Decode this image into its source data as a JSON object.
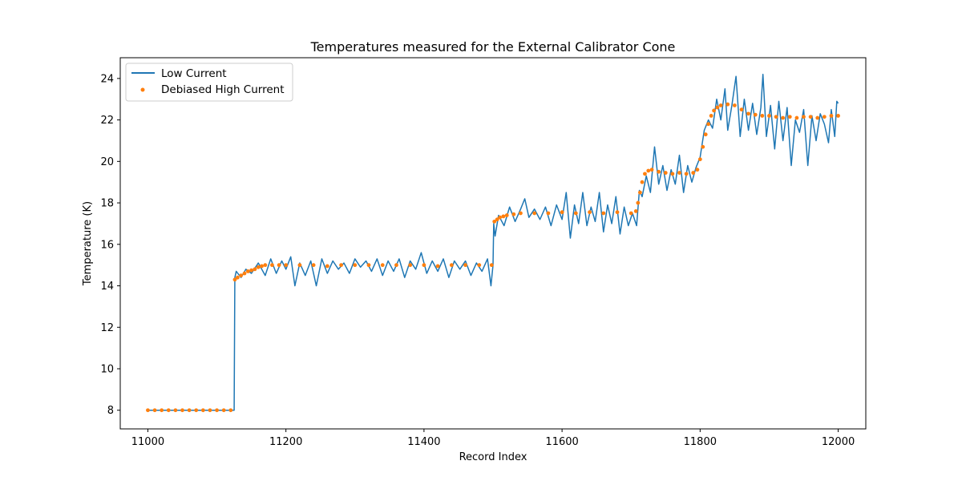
{
  "chart_data": {
    "type": "line+scatter",
    "title": "Temperatures measured for the External Calibrator Cone",
    "xlabel": "Record Index",
    "ylabel": "Temperature (K)",
    "xlim": [
      10960,
      12040
    ],
    "ylim": [
      7.1,
      25.0
    ],
    "xticks": [
      11000,
      11200,
      11400,
      11600,
      11800,
      12000
    ],
    "yticks": [
      8,
      10,
      12,
      14,
      16,
      18,
      20,
      22,
      24
    ],
    "legend_position": "upper-left",
    "series": [
      {
        "name": "Low Current",
        "kind": "line",
        "color": "#1f77b4",
        "points": [
          [
            11000,
            8.0
          ],
          [
            11125,
            8.0
          ],
          [
            11126,
            14.4
          ],
          [
            11128,
            14.7
          ],
          [
            11135,
            14.4
          ],
          [
            11142,
            14.8
          ],
          [
            11150,
            14.6
          ],
          [
            11160,
            15.1
          ],
          [
            11170,
            14.5
          ],
          [
            11178,
            15.3
          ],
          [
            11186,
            14.6
          ],
          [
            11194,
            15.2
          ],
          [
            11200,
            14.8
          ],
          [
            11207,
            15.4
          ],
          [
            11213,
            14.0
          ],
          [
            11220,
            15.1
          ],
          [
            11228,
            14.5
          ],
          [
            11236,
            15.2
          ],
          [
            11244,
            14.0
          ],
          [
            11252,
            15.3
          ],
          [
            11260,
            14.6
          ],
          [
            11268,
            15.2
          ],
          [
            11276,
            14.8
          ],
          [
            11284,
            15.1
          ],
          [
            11292,
            14.6
          ],
          [
            11300,
            15.3
          ],
          [
            11308,
            14.9
          ],
          [
            11316,
            15.2
          ],
          [
            11324,
            14.7
          ],
          [
            11332,
            15.3
          ],
          [
            11340,
            14.5
          ],
          [
            11348,
            15.2
          ],
          [
            11356,
            14.7
          ],
          [
            11364,
            15.3
          ],
          [
            11372,
            14.4
          ],
          [
            11380,
            15.2
          ],
          [
            11388,
            14.8
          ],
          [
            11396,
            15.6
          ],
          [
            11404,
            14.6
          ],
          [
            11412,
            15.2
          ],
          [
            11420,
            14.7
          ],
          [
            11428,
            15.3
          ],
          [
            11436,
            14.4
          ],
          [
            11444,
            15.2
          ],
          [
            11452,
            14.8
          ],
          [
            11460,
            15.2
          ],
          [
            11468,
            14.5
          ],
          [
            11476,
            15.1
          ],
          [
            11484,
            14.7
          ],
          [
            11492,
            15.3
          ],
          [
            11497,
            14.0
          ],
          [
            11500,
            15.0
          ],
          [
            11501,
            17.0
          ],
          [
            11503,
            16.4
          ],
          [
            11508,
            17.4
          ],
          [
            11516,
            16.9
          ],
          [
            11524,
            17.8
          ],
          [
            11532,
            17.1
          ],
          [
            11540,
            17.7
          ],
          [
            11546,
            18.2
          ],
          [
            11552,
            17.3
          ],
          [
            11560,
            17.7
          ],
          [
            11568,
            17.2
          ],
          [
            11576,
            17.8
          ],
          [
            11584,
            16.9
          ],
          [
            11592,
            17.9
          ],
          [
            11600,
            17.2
          ],
          [
            11606,
            18.5
          ],
          [
            11612,
            16.3
          ],
          [
            11618,
            17.9
          ],
          [
            11624,
            17.0
          ],
          [
            11630,
            18.5
          ],
          [
            11636,
            16.9
          ],
          [
            11642,
            17.8
          ],
          [
            11648,
            17.1
          ],
          [
            11654,
            18.5
          ],
          [
            11660,
            16.6
          ],
          [
            11666,
            17.9
          ],
          [
            11672,
            17.0
          ],
          [
            11678,
            18.3
          ],
          [
            11684,
            16.5
          ],
          [
            11690,
            17.8
          ],
          [
            11696,
            16.9
          ],
          [
            11702,
            17.5
          ],
          [
            11708,
            16.9
          ],
          [
            11712,
            18.6
          ],
          [
            11716,
            18.3
          ],
          [
            11722,
            19.3
          ],
          [
            11728,
            18.5
          ],
          [
            11734,
            20.7
          ],
          [
            11740,
            18.9
          ],
          [
            11746,
            19.8
          ],
          [
            11752,
            18.6
          ],
          [
            11758,
            19.6
          ],
          [
            11764,
            18.9
          ],
          [
            11770,
            20.3
          ],
          [
            11776,
            18.5
          ],
          [
            11782,
            19.8
          ],
          [
            11788,
            19.0
          ],
          [
            11794,
            19.7
          ],
          [
            11800,
            20.2
          ],
          [
            11806,
            21.5
          ],
          [
            11812,
            22.0
          ],
          [
            11818,
            21.6
          ],
          [
            11824,
            23.0
          ],
          [
            11830,
            22.0
          ],
          [
            11836,
            23.5
          ],
          [
            11840,
            21.5
          ],
          [
            11846,
            22.7
          ],
          [
            11852,
            24.1
          ],
          [
            11858,
            21.2
          ],
          [
            11864,
            23.0
          ],
          [
            11870,
            21.5
          ],
          [
            11876,
            22.8
          ],
          [
            11882,
            21.3
          ],
          [
            11888,
            22.6
          ],
          [
            11891,
            24.2
          ],
          [
            11896,
            21.2
          ],
          [
            11902,
            22.7
          ],
          [
            11908,
            20.6
          ],
          [
            11914,
            22.9
          ],
          [
            11920,
            21.0
          ],
          [
            11926,
            22.6
          ],
          [
            11932,
            19.8
          ],
          [
            11938,
            22.0
          ],
          [
            11944,
            21.4
          ],
          [
            11950,
            22.5
          ],
          [
            11956,
            19.8
          ],
          [
            11962,
            22.2
          ],
          [
            11968,
            21.0
          ],
          [
            11974,
            22.3
          ],
          [
            11980,
            21.8
          ],
          [
            11986,
            20.9
          ],
          [
            11990,
            22.5
          ],
          [
            11995,
            21.2
          ],
          [
            11998,
            22.9
          ],
          [
            12000,
            22.8
          ]
        ]
      },
      {
        "name": "Debiased High Current",
        "kind": "scatter",
        "color": "#ff7f0e",
        "points": [
          [
            11000,
            8.0
          ],
          [
            11010,
            8.0
          ],
          [
            11020,
            8.0
          ],
          [
            11030,
            8.0
          ],
          [
            11040,
            8.0
          ],
          [
            11050,
            8.0
          ],
          [
            11060,
            8.0
          ],
          [
            11070,
            8.0
          ],
          [
            11080,
            8.0
          ],
          [
            11090,
            8.0
          ],
          [
            11100,
            8.0
          ],
          [
            11110,
            8.0
          ],
          [
            11120,
            8.0
          ],
          [
            11126,
            14.3
          ],
          [
            11130,
            14.4
          ],
          [
            11135,
            14.5
          ],
          [
            11140,
            14.6
          ],
          [
            11145,
            14.7
          ],
          [
            11150,
            14.75
          ],
          [
            11155,
            14.8
          ],
          [
            11160,
            14.9
          ],
          [
            11165,
            14.95
          ],
          [
            11170,
            15.0
          ],
          [
            11180,
            15.0
          ],
          [
            11190,
            15.0
          ],
          [
            11200,
            15.0
          ],
          [
            11220,
            15.0
          ],
          [
            11240,
            15.0
          ],
          [
            11260,
            14.95
          ],
          [
            11280,
            15.0
          ],
          [
            11300,
            15.0
          ],
          [
            11320,
            15.0
          ],
          [
            11340,
            15.0
          ],
          [
            11360,
            15.0
          ],
          [
            11380,
            15.0
          ],
          [
            11400,
            15.0
          ],
          [
            11420,
            14.95
          ],
          [
            11440,
            15.0
          ],
          [
            11460,
            15.0
          ],
          [
            11480,
            15.0
          ],
          [
            11498,
            15.0
          ],
          [
            11502,
            17.1
          ],
          [
            11506,
            17.2
          ],
          [
            11510,
            17.3
          ],
          [
            11515,
            17.35
          ],
          [
            11520,
            17.4
          ],
          [
            11530,
            17.45
          ],
          [
            11540,
            17.5
          ],
          [
            11560,
            17.5
          ],
          [
            11580,
            17.5
          ],
          [
            11600,
            17.55
          ],
          [
            11620,
            17.5
          ],
          [
            11640,
            17.55
          ],
          [
            11660,
            17.5
          ],
          [
            11680,
            17.55
          ],
          [
            11700,
            17.5
          ],
          [
            11707,
            17.6
          ],
          [
            11710,
            18.0
          ],
          [
            11713,
            18.5
          ],
          [
            11716,
            19.0
          ],
          [
            11720,
            19.4
          ],
          [
            11725,
            19.55
          ],
          [
            11730,
            19.6
          ],
          [
            11740,
            19.5
          ],
          [
            11750,
            19.45
          ],
          [
            11760,
            19.4
          ],
          [
            11770,
            19.45
          ],
          [
            11780,
            19.4
          ],
          [
            11790,
            19.45
          ],
          [
            11796,
            19.6
          ],
          [
            11800,
            20.1
          ],
          [
            11804,
            20.7
          ],
          [
            11808,
            21.3
          ],
          [
            11812,
            21.8
          ],
          [
            11816,
            22.2
          ],
          [
            11820,
            22.45
          ],
          [
            11825,
            22.6
          ],
          [
            11830,
            22.7
          ],
          [
            11840,
            22.75
          ],
          [
            11850,
            22.7
          ],
          [
            11860,
            22.5
          ],
          [
            11870,
            22.3
          ],
          [
            11880,
            22.25
          ],
          [
            11890,
            22.2
          ],
          [
            11900,
            22.2
          ],
          [
            11910,
            22.15
          ],
          [
            11920,
            22.1
          ],
          [
            11930,
            22.15
          ],
          [
            11940,
            22.1
          ],
          [
            11950,
            22.15
          ],
          [
            11960,
            22.15
          ],
          [
            11970,
            22.1
          ],
          [
            11980,
            22.15
          ],
          [
            11990,
            22.2
          ],
          [
            12000,
            22.2
          ]
        ]
      }
    ]
  }
}
